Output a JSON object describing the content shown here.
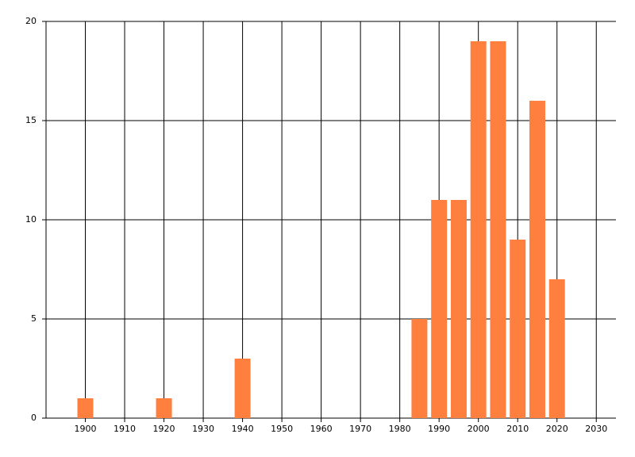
{
  "chart_data": {
    "type": "bar",
    "x": [
      1900,
      1920,
      1940,
      1985,
      1990,
      1995,
      2000,
      2005,
      2010,
      2015,
      2020
    ],
    "values": [
      1,
      1,
      3,
      5,
      11,
      11,
      19,
      19,
      9,
      16,
      7
    ],
    "color": "#ff7f3f",
    "xlim": [
      1890,
      2035
    ],
    "xticks": [
      1900,
      1910,
      1920,
      1930,
      1940,
      1950,
      1960,
      1970,
      1980,
      1990,
      2000,
      2010,
      2020,
      2030
    ],
    "ylim": [
      0,
      20
    ],
    "yticks": [
      0,
      5,
      10,
      15,
      20
    ],
    "grid": true
  }
}
